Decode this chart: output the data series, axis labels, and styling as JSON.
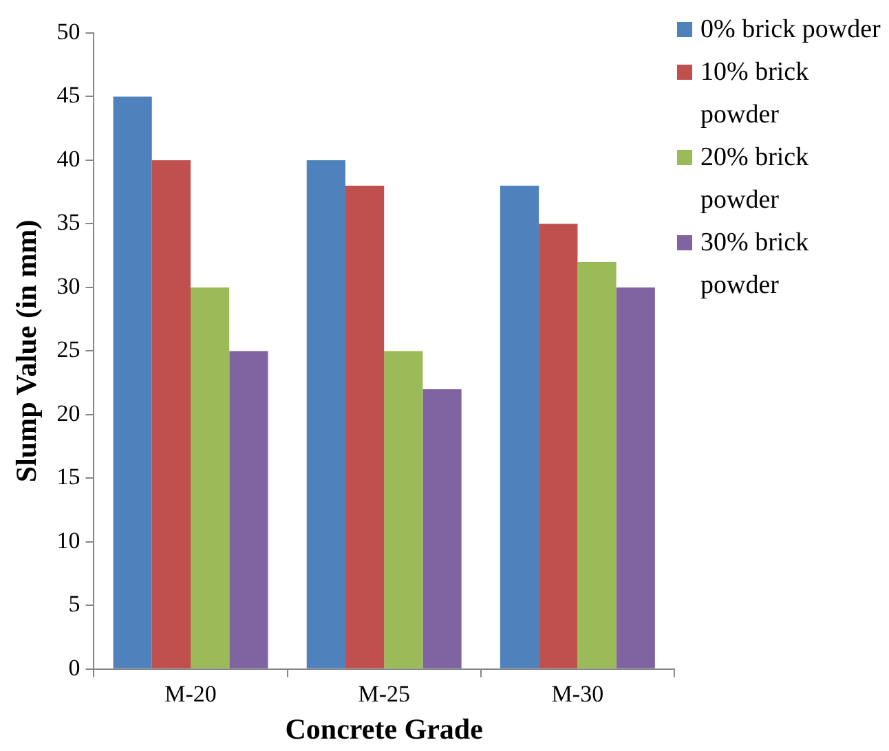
{
  "chart_data": {
    "type": "bar",
    "xlabel": "Concrete Grade",
    "ylabel": "Slump Value (in mm)",
    "categories": [
      "M-20",
      "M-25",
      "M-30"
    ],
    "series": [
      {
        "name": "0% brick powder",
        "color": "#4f81bd",
        "values": [
          45,
          40,
          38
        ]
      },
      {
        "name": "10% brick powder",
        "color": "#c0504d",
        "values": [
          40,
          38,
          35
        ]
      },
      {
        "name": "20% brick powder",
        "color": "#9bbb59",
        "values": [
          30,
          25,
          32
        ]
      },
      {
        "name": "30% brick powder",
        "color": "#8064a2",
        "values": [
          25,
          22,
          30
        ]
      }
    ],
    "ylim": [
      0,
      50
    ],
    "yticks": [
      0,
      5,
      10,
      15,
      20,
      25,
      30,
      35,
      40,
      45,
      50
    ],
    "grid": false,
    "legend": "right"
  }
}
